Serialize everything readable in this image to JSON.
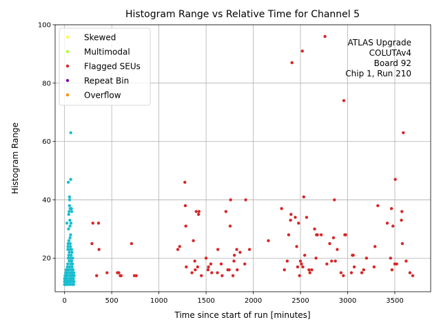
{
  "chart_data": {
    "type": "scatter",
    "title": "Histogram Range vs Relative Time for Channel 5",
    "xlabel": "Time since start of run [minutes]",
    "ylabel": "Histogram Range",
    "xlim": [
      -100,
      3880
    ],
    "ylim": [
      8.5,
      100
    ],
    "xticks": [
      0,
      500,
      1000,
      1500,
      2000,
      2500,
      3000,
      3500
    ],
    "yticks": [
      20,
      40,
      60,
      80,
      100
    ],
    "grid": true,
    "legend_position": "top-left",
    "annotation": [
      "ATLAS Upgrade",
      "COLUTAv4",
      "Board 92",
      "Chip 1, Run 210"
    ],
    "series": [
      {
        "name": "Skewed",
        "color": "#ffff33",
        "points": []
      },
      {
        "name": "Multimodal",
        "color": "#aaff22",
        "points": []
      },
      {
        "name": "Flagged SEUs",
        "color": "#d62728",
        "points": [
          [
            70,
            14
          ],
          [
            290,
            25
          ],
          [
            300,
            32
          ],
          [
            340,
            14
          ],
          [
            360,
            32
          ],
          [
            365,
            23
          ],
          [
            450,
            15
          ],
          [
            560,
            15
          ],
          [
            575,
            15
          ],
          [
            590,
            14
          ],
          [
            600,
            14
          ],
          [
            710,
            25
          ],
          [
            740,
            14
          ],
          [
            760,
            14
          ],
          [
            1200,
            23
          ],
          [
            1220,
            24
          ],
          [
            1275,
            46
          ],
          [
            1280,
            38
          ],
          [
            1285,
            31
          ],
          [
            1290,
            17
          ],
          [
            1350,
            15
          ],
          [
            1365,
            26
          ],
          [
            1380,
            19
          ],
          [
            1385,
            16
          ],
          [
            1395,
            36
          ],
          [
            1410,
            17
          ],
          [
            1420,
            35
          ],
          [
            1425,
            36
          ],
          [
            1450,
            14
          ],
          [
            1500,
            20
          ],
          [
            1520,
            16
          ],
          [
            1525,
            17
          ],
          [
            1550,
            18
          ],
          [
            1560,
            15
          ],
          [
            1620,
            15
          ],
          [
            1625,
            23
          ],
          [
            1660,
            18
          ],
          [
            1670,
            14
          ],
          [
            1710,
            36
          ],
          [
            1730,
            16
          ],
          [
            1745,
            16
          ],
          [
            1755,
            31
          ],
          [
            1760,
            40
          ],
          [
            1785,
            14
          ],
          [
            1795,
            19
          ],
          [
            1800,
            21
          ],
          [
            1825,
            23
          ],
          [
            1830,
            16
          ],
          [
            1860,
            22
          ],
          [
            1910,
            18
          ],
          [
            1920,
            40
          ],
          [
            1960,
            23
          ],
          [
            2160,
            26
          ],
          [
            2300,
            37
          ],
          [
            2330,
            16
          ],
          [
            2360,
            19
          ],
          [
            2375,
            28
          ],
          [
            2395,
            33
          ],
          [
            2400,
            35
          ],
          [
            2410,
            87
          ],
          [
            2445,
            34
          ],
          [
            2460,
            24
          ],
          [
            2470,
            17
          ],
          [
            2480,
            32
          ],
          [
            2490,
            14
          ],
          [
            2500,
            19
          ],
          [
            2510,
            18
          ],
          [
            2520,
            91
          ],
          [
            2525,
            17
          ],
          [
            2535,
            41
          ],
          [
            2545,
            21
          ],
          [
            2565,
            34
          ],
          [
            2590,
            16
          ],
          [
            2600,
            15
          ],
          [
            2620,
            16
          ],
          [
            2650,
            30
          ],
          [
            2665,
            20
          ],
          [
            2670,
            28
          ],
          [
            2680,
            28
          ],
          [
            2720,
            28
          ],
          [
            2760,
            96
          ],
          [
            2780,
            18
          ],
          [
            2810,
            25
          ],
          [
            2830,
            19
          ],
          [
            2850,
            27
          ],
          [
            2860,
            40
          ],
          [
            2870,
            19
          ],
          [
            2890,
            23
          ],
          [
            2930,
            15
          ],
          [
            2955,
            14
          ],
          [
            2960,
            74
          ],
          [
            2970,
            28
          ],
          [
            2980,
            28
          ],
          [
            3040,
            15
          ],
          [
            3050,
            21
          ],
          [
            3060,
            21
          ],
          [
            3070,
            17
          ],
          [
            3150,
            15
          ],
          [
            3170,
            16
          ],
          [
            3200,
            20
          ],
          [
            3280,
            17
          ],
          [
            3290,
            24
          ],
          [
            3320,
            38
          ],
          [
            3420,
            32
          ],
          [
            3455,
            20
          ],
          [
            3465,
            37
          ],
          [
            3470,
            16
          ],
          [
            3480,
            31
          ],
          [
            3500,
            18
          ],
          [
            3505,
            47
          ],
          [
            3520,
            18
          ],
          [
            3570,
            33
          ],
          [
            3575,
            36
          ],
          [
            3580,
            25
          ],
          [
            3590,
            63
          ],
          [
            3620,
            19
          ],
          [
            3660,
            15
          ],
          [
            3690,
            14
          ]
        ]
      },
      {
        "name": "Repeat Bin",
        "color": "#7b00b0",
        "points": []
      },
      {
        "name": "Overflow",
        "color": "#ff8c00",
        "points": []
      },
      {
        "name": "",
        "color": "#17becf",
        "points": [
          [
            0,
            11
          ],
          [
            0,
            12
          ],
          [
            0,
            13
          ],
          [
            2,
            11
          ],
          [
            4,
            12
          ],
          [
            5,
            14
          ],
          [
            6,
            11
          ],
          [
            8,
            13
          ],
          [
            10,
            12
          ],
          [
            10,
            14
          ],
          [
            12,
            15
          ],
          [
            14,
            11
          ],
          [
            15,
            13
          ],
          [
            16,
            16
          ],
          [
            18,
            12
          ],
          [
            20,
            14
          ],
          [
            22,
            15
          ],
          [
            24,
            11
          ],
          [
            25,
            32
          ],
          [
            26,
            13
          ],
          [
            28,
            12
          ],
          [
            30,
            16
          ],
          [
            30,
            17
          ],
          [
            32,
            14
          ],
          [
            34,
            18
          ],
          [
            35,
            23
          ],
          [
            36,
            24
          ],
          [
            38,
            12
          ],
          [
            38,
            25
          ],
          [
            40,
            20
          ],
          [
            40,
            46
          ],
          [
            42,
            15
          ],
          [
            42,
            30
          ],
          [
            44,
            21
          ],
          [
            44,
            35
          ],
          [
            45,
            11
          ],
          [
            46,
            12
          ],
          [
            46,
            26
          ],
          [
            48,
            16
          ],
          [
            48,
            36
          ],
          [
            50,
            13
          ],
          [
            50,
            19
          ],
          [
            50,
            22
          ],
          [
            52,
            38
          ],
          [
            52,
            41
          ],
          [
            54,
            14
          ],
          [
            54,
            40
          ],
          [
            55,
            17
          ],
          [
            56,
            23
          ],
          [
            56,
            33
          ],
          [
            58,
            31
          ],
          [
            58,
            27
          ],
          [
            60,
            12
          ],
          [
            60,
            25
          ],
          [
            60,
            37
          ],
          [
            62,
            11
          ],
          [
            62,
            20
          ],
          [
            62,
            24
          ],
          [
            64,
            15
          ],
          [
            64,
            28
          ],
          [
            65,
            47
          ],
          [
            66,
            18
          ],
          [
            66,
            63
          ],
          [
            68,
            13
          ],
          [
            68,
            32
          ],
          [
            70,
            16
          ],
          [
            70,
            21
          ],
          [
            72,
            37
          ],
          [
            72,
            12
          ],
          [
            74,
            19
          ],
          [
            74,
            23
          ],
          [
            76,
            14
          ],
          [
            76,
            36
          ],
          [
            78,
            22
          ],
          [
            80,
            17
          ],
          [
            80,
            13
          ],
          [
            82,
            15
          ],
          [
            84,
            11
          ],
          [
            84,
            18
          ],
          [
            86,
            20
          ],
          [
            88,
            12
          ],
          [
            90,
            16
          ],
          [
            92,
            14
          ],
          [
            94,
            13
          ],
          [
            96,
            11
          ],
          [
            98,
            15
          ],
          [
            100,
            12
          ],
          [
            102,
            14
          ]
        ]
      }
    ]
  }
}
